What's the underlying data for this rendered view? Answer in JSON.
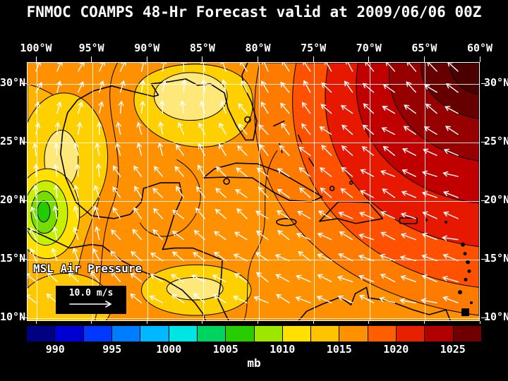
{
  "title": "FNMOC COAMPS 48-Hr Forecast valid at 2009/06/06 00Z",
  "map": {
    "lon_labels": [
      "100°W",
      "95°W",
      "90°W",
      "85°W",
      "80°W",
      "75°W",
      "70°W",
      "65°W",
      "60°W"
    ],
    "lat_labels": [
      "30°N",
      "25°N",
      "20°N",
      "15°N",
      "10°N"
    ],
    "overlay_label": "MSL Air Pressure",
    "wind_scale": {
      "label": "10.0 m/s"
    }
  },
  "colorbar": {
    "unit": "mb",
    "tick_labels": [
      "990",
      "995",
      "1000",
      "1005",
      "1010",
      "1015",
      "1020",
      "1025"
    ],
    "segment_colors": [
      "#000082",
      "#0000d2",
      "#0038ff",
      "#007cff",
      "#00b8ff",
      "#00e4e4",
      "#00d460",
      "#28cc00",
      "#9ce600",
      "#ffe000",
      "#ffc400",
      "#ff9100",
      "#ff5e00",
      "#e62000",
      "#b00000",
      "#700000"
    ]
  },
  "chart_data": {
    "type": "heatmap",
    "title": "FNMOC COAMPS 48-Hr Forecast valid at 2009/06/06 00Z",
    "variable": "MSL Air Pressure",
    "unit": "mb",
    "x_ticks": [
      "100°W",
      "95°W",
      "90°W",
      "85°W",
      "80°W",
      "75°W",
      "70°W",
      "65°W",
      "60°W"
    ],
    "y_ticks": [
      "30°N",
      "25°N",
      "20°N",
      "15°N",
      "10°N"
    ],
    "xlim_degW": [
      100.8,
      60
    ],
    "ylim_degN": [
      9.7,
      31.8
    ],
    "grid_on": true,
    "colorbar_ticks_mb": [
      990,
      995,
      1000,
      1005,
      1010,
      1015,
      1020,
      1025
    ],
    "colorbar_range_mb": [
      987.5,
      1027.5
    ],
    "grid_estimate": {
      "lons_degW": [
        100,
        95,
        90,
        85,
        80,
        75,
        70,
        65,
        60
      ],
      "lats_degN": [
        30,
        25,
        20,
        15,
        10
      ],
      "mslp_mb": [
        [
          1012,
          1012,
          1013,
          1010,
          1014,
          1018,
          1022,
          1024,
          1026
        ],
        [
          1012,
          1013,
          1014,
          1012,
          1014,
          1016,
          1019,
          1022,
          1024
        ],
        [
          1010,
          1012,
          1013,
          1014,
          1014,
          1015,
          1016,
          1017,
          1018
        ],
        [
          1006,
          1010,
          1011,
          1012,
          1012,
          1013,
          1013,
          1014,
          1014
        ],
        [
          1010,
          1010,
          1011,
          1011,
          1010,
          1011,
          1012,
          1012,
          1013
        ]
      ]
    },
    "features": [
      {
        "name": "subtropical-high",
        "type": "high",
        "location": "northeast corner of map (Atlantic)",
        "approx_mb": 1026
      },
      {
        "name": "thermal-low",
        "type": "low",
        "location": "near 100W 18N (western Mexico)",
        "approx_mb": 1004
      }
    ],
    "wind": {
      "reference_label": "10.0 m/s",
      "pattern": "easterly trade winds across the south and east; anticyclonic flow around the Atlantic high; south-to-north flow over the western Gulf of Mexico"
    }
  }
}
